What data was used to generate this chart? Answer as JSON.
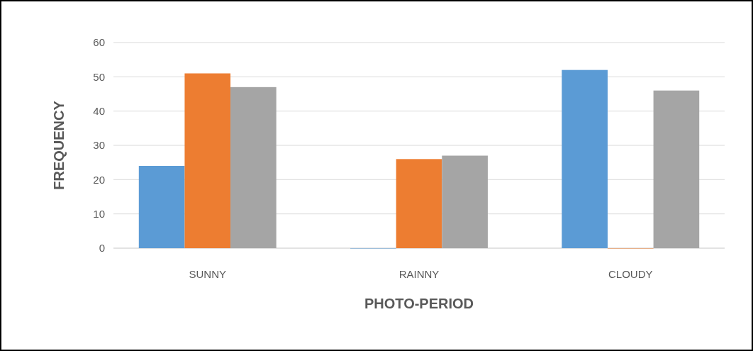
{
  "chart_data": {
    "type": "bar",
    "xlabel": "PHOTO-PERIOD",
    "ylabel": "FREQUENCY",
    "categories": [
      "SUNNY",
      "RAINNY",
      "CLOUDY"
    ],
    "series": [
      {
        "color": "#5b9bd5",
        "values": [
          24,
          0,
          52
        ]
      },
      {
        "color": "#ed7d31",
        "values": [
          51,
          26,
          0
        ]
      },
      {
        "color": "#a5a5a5",
        "values": [
          47,
          27,
          46
        ]
      }
    ],
    "ylim": [
      0,
      60
    ],
    "yticks": [
      0,
      10,
      20,
      30,
      40,
      50,
      60
    ],
    "grid": "y"
  }
}
